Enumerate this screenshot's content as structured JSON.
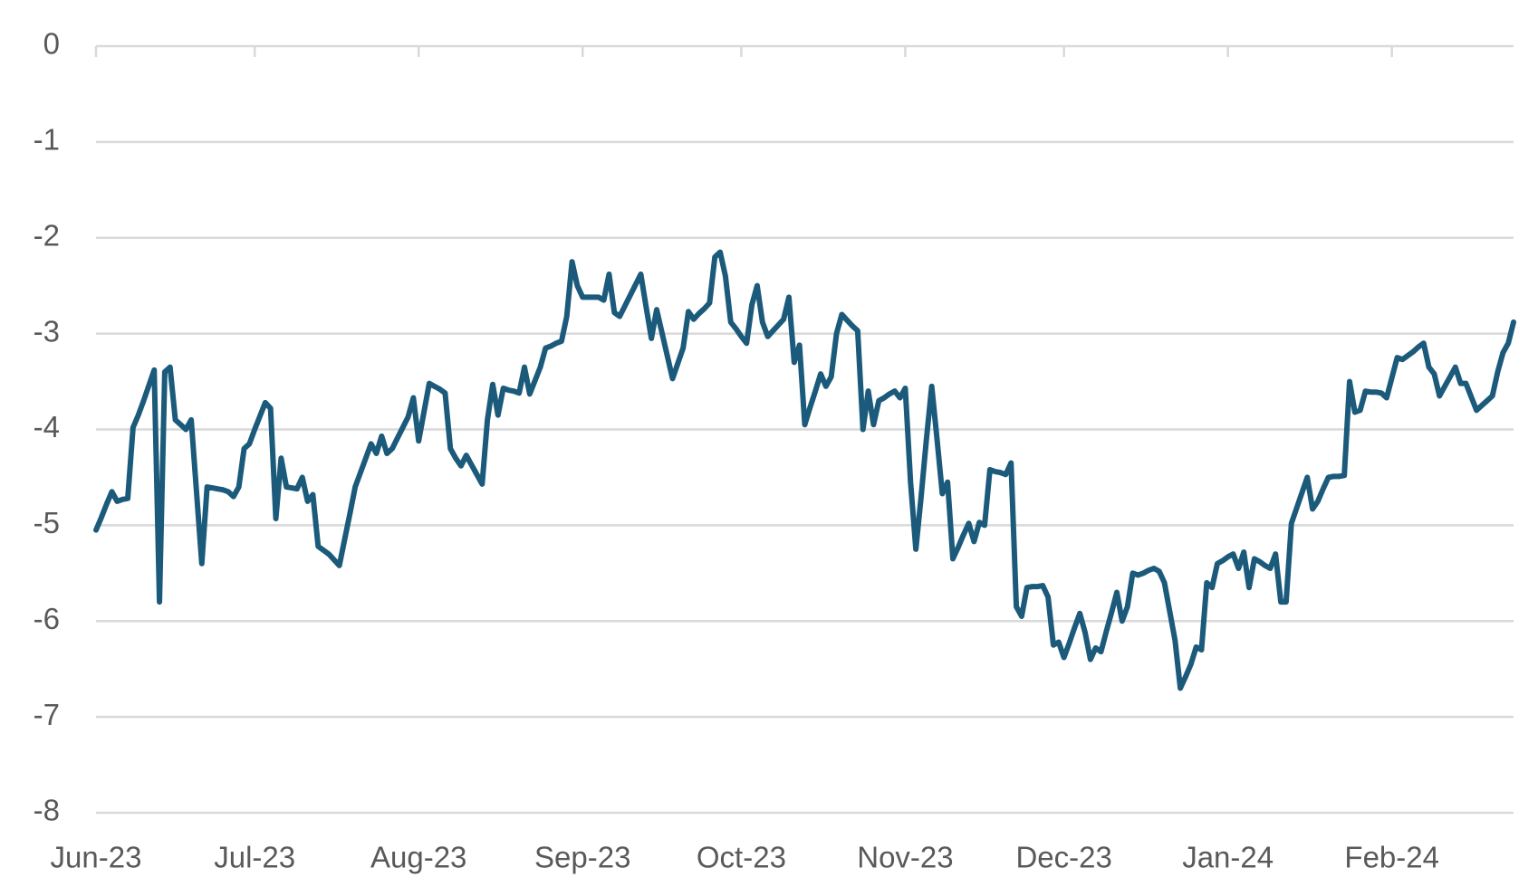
{
  "chart_data": {
    "type": "line",
    "categories": [
      "Jun-23",
      null,
      null,
      null,
      null,
      null,
      null,
      null,
      null,
      null,
      null,
      null,
      null,
      null,
      null,
      null,
      null,
      null,
      null,
      null,
      null,
      null,
      null,
      null,
      null,
      null,
      null,
      null,
      null,
      null,
      "Jul-23",
      null,
      null,
      null,
      null,
      null,
      null,
      null,
      null,
      null,
      null,
      null,
      null,
      null,
      null,
      null,
      null,
      null,
      null,
      null,
      null,
      null,
      null,
      null,
      null,
      null,
      null,
      null,
      null,
      null,
      null,
      "Aug-23",
      null,
      null,
      null,
      null,
      null,
      null,
      null,
      null,
      null,
      null,
      null,
      null,
      null,
      null,
      null,
      null,
      null,
      null,
      null,
      null,
      null,
      null,
      null,
      null,
      null,
      null,
      null,
      null,
      null,
      null,
      "Sep-23",
      null,
      null,
      null,
      null,
      null,
      null,
      null,
      null,
      null,
      null,
      null,
      null,
      null,
      null,
      null,
      null,
      null,
      null,
      null,
      null,
      null,
      null,
      null,
      null,
      null,
      null,
      null,
      null,
      null,
      "Oct-23",
      null,
      null,
      null,
      null,
      null,
      null,
      null,
      null,
      null,
      null,
      null,
      null,
      null,
      null,
      null,
      null,
      null,
      null,
      null,
      null,
      null,
      null,
      null,
      null,
      null,
      null,
      null,
      null,
      null,
      null,
      "Nov-23",
      null,
      null,
      null,
      null,
      null,
      null,
      null,
      null,
      null,
      null,
      null,
      null,
      null,
      null,
      null,
      null,
      null,
      null,
      null,
      null,
      null,
      null,
      null,
      null,
      null,
      null,
      null,
      null,
      null,
      "Dec-23",
      null,
      null,
      null,
      null,
      null,
      null,
      null,
      null,
      null,
      null,
      null,
      null,
      null,
      null,
      null,
      null,
      null,
      null,
      null,
      null,
      null,
      null,
      null,
      null,
      null,
      null,
      null,
      null,
      null,
      null,
      "Jan-24",
      null,
      null,
      null,
      null,
      null,
      null,
      null,
      null,
      null,
      null,
      null,
      null,
      null,
      null,
      null,
      null,
      null,
      null,
      null,
      null,
      null,
      null,
      null,
      null,
      null,
      null,
      null,
      null,
      null,
      null,
      "Feb-24",
      null,
      null,
      null,
      null,
      null,
      null,
      null,
      null,
      null,
      null,
      null,
      null,
      null,
      null,
      null,
      null,
      null,
      null,
      null,
      null,
      null,
      null,
      null
    ],
    "series": [
      {
        "color": "#1b5a7a",
        "values": [
          -5.05,
          -4.92,
          -4.78,
          -4.65,
          -4.75,
          -4.73,
          -4.72,
          -3.98,
          -3.85,
          -3.7,
          -3.54,
          -3.38,
          -5.8,
          -3.4,
          -3.35,
          -3.9,
          -3.95,
          -4.0,
          -3.9,
          -4.65,
          -5.4,
          -4.6,
          -4.61,
          -4.62,
          -4.63,
          -4.65,
          -4.7,
          -4.6,
          -4.2,
          -4.15,
          -4.0,
          -3.86,
          -3.72,
          -3.78,
          -4.93,
          -4.3,
          -4.6,
          -4.61,
          -4.62,
          -4.5,
          -4.75,
          -4.68,
          -5.22,
          -5.26,
          -5.3,
          -5.36,
          -5.42,
          -5.15,
          -4.88,
          -4.6,
          -4.45,
          -4.3,
          -4.15,
          -4.25,
          -4.07,
          -4.25,
          -4.2,
          -4.09,
          -3.98,
          -3.87,
          -3.67,
          -4.12,
          -3.82,
          -3.52,
          -3.55,
          -3.58,
          -3.62,
          -4.2,
          -4.3,
          -4.38,
          -4.27,
          -4.37,
          -4.47,
          -4.57,
          -3.9,
          -3.53,
          -3.85,
          -3.57,
          -3.59,
          -3.6,
          -3.62,
          -3.35,
          -3.63,
          -3.49,
          -3.35,
          -3.15,
          -3.13,
          -3.1,
          -3.08,
          -2.82,
          -2.25,
          -2.5,
          -2.62,
          -2.62,
          -2.62,
          -2.62,
          -2.65,
          -2.38,
          -2.78,
          -2.82,
          -2.71,
          -2.6,
          -2.49,
          -2.38,
          -2.72,
          -3.05,
          -2.75,
          -2.99,
          -3.23,
          -3.47,
          -3.31,
          -3.15,
          -2.77,
          -2.85,
          -2.79,
          -2.74,
          -2.68,
          -2.2,
          -2.15,
          -2.4,
          -2.88,
          -2.95,
          -3.03,
          -3.1,
          -2.7,
          -2.5,
          -2.88,
          -3.03,
          -2.97,
          -2.91,
          -2.85,
          -2.62,
          -3.3,
          -3.12,
          -3.95,
          -3.77,
          -3.6,
          -3.42,
          -3.55,
          -3.45,
          -3.0,
          -2.8,
          -2.86,
          -2.92,
          -2.97,
          -4.0,
          -3.6,
          -3.95,
          -3.7,
          -3.67,
          -3.63,
          -3.6,
          -3.67,
          -3.57,
          -4.55,
          -5.25,
          -4.7,
          -4.1,
          -3.55,
          -4.1,
          -4.67,
          -4.55,
          -5.35,
          -5.23,
          -5.1,
          -4.98,
          -5.17,
          -4.97,
          -5.0,
          -4.42,
          -4.44,
          -4.45,
          -4.47,
          -4.35,
          -5.85,
          -5.95,
          -5.65,
          -5.64,
          -5.64,
          -5.63,
          -5.75,
          -6.25,
          -6.22,
          -6.38,
          -6.23,
          -6.07,
          -5.92,
          -6.12,
          -6.4,
          -6.28,
          -6.32,
          -6.11,
          -5.91,
          -5.7,
          -6.0,
          -5.85,
          -5.5,
          -5.52,
          -5.5,
          -5.47,
          -5.45,
          -5.48,
          -5.6,
          -5.9,
          -6.2,
          -6.7,
          -6.58,
          -6.45,
          -6.27,
          -6.3,
          -5.6,
          -5.65,
          -5.4,
          -5.37,
          -5.33,
          -5.3,
          -5.45,
          -5.28,
          -5.65,
          -5.35,
          -5.38,
          -5.42,
          -5.45,
          -5.3,
          -5.8,
          -5.8,
          -4.98,
          -4.82,
          -4.66,
          -4.5,
          -4.83,
          -4.75,
          -4.62,
          -4.5,
          -4.49,
          -4.49,
          -4.48,
          -3.5,
          -3.82,
          -3.8,
          -3.6,
          -3.61,
          -3.61,
          -3.62,
          -3.67,
          -3.46,
          -3.25,
          -3.27,
          -3.23,
          -3.19,
          -3.14,
          -3.1,
          -3.35,
          -3.42,
          -3.65,
          -3.55,
          -3.45,
          -3.35,
          -3.52,
          -3.52,
          -3.66,
          -3.8,
          -3.75,
          -3.7,
          -3.65,
          -3.4,
          -3.2,
          -3.1,
          -2.88
        ]
      }
    ],
    "ylim": [
      -8,
      0
    ],
    "yticks": [
      0,
      -1,
      -2,
      -3,
      -4,
      -5,
      -6,
      -7,
      -8
    ],
    "grid": true
  }
}
